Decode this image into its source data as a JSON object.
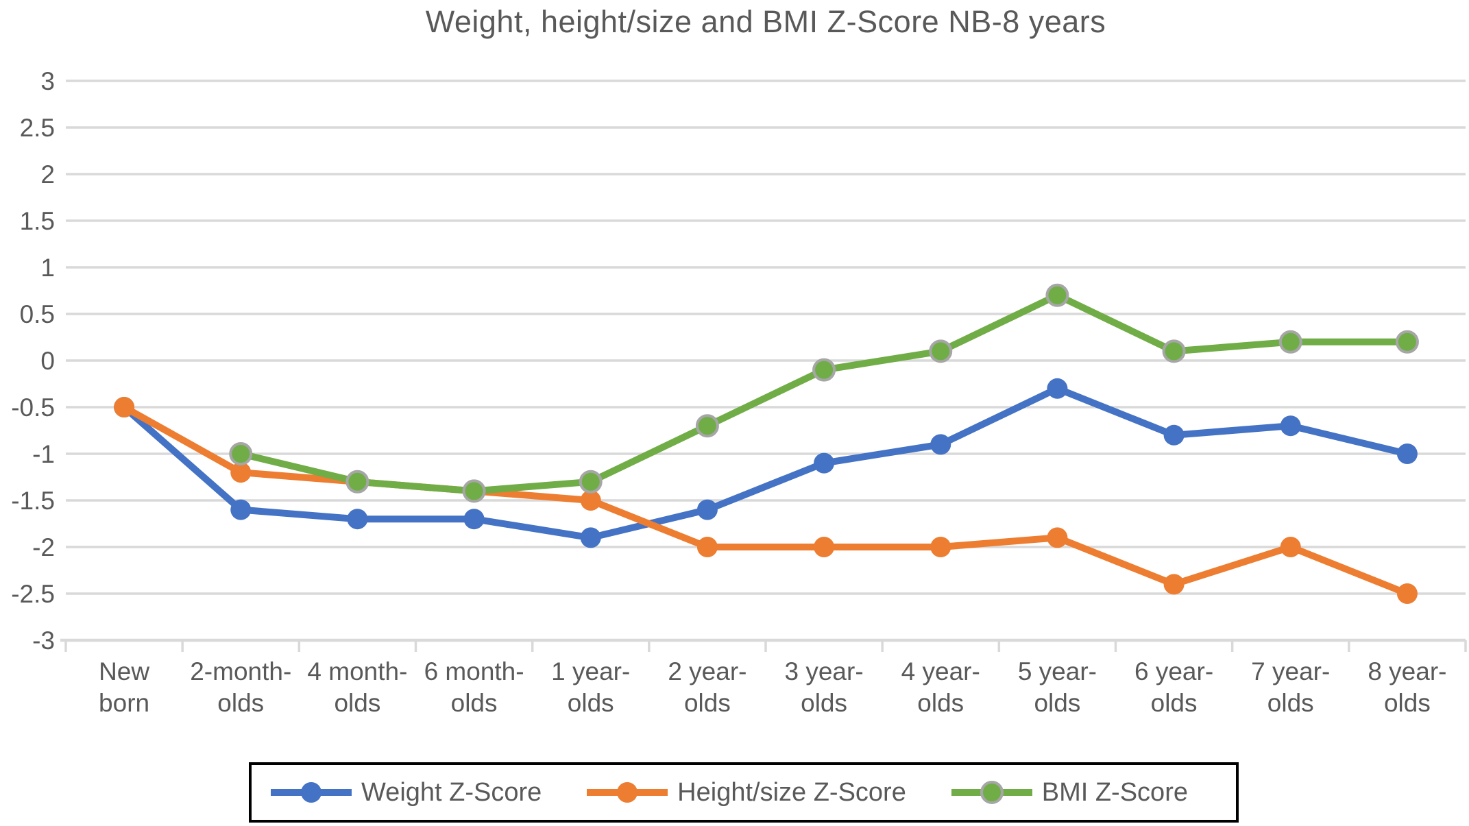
{
  "chart_data": {
    "type": "line",
    "title": "Weight, height/size and BMI Z-Score NB-8 years",
    "categories": [
      "New born",
      "2-month-olds",
      "4 month-olds",
      "6 month-olds",
      "1 year-olds",
      "2 year-olds",
      "3 year-olds",
      "4 year-olds",
      "5 year-olds",
      "6 year-olds",
      "7 year-olds",
      "8 year-olds"
    ],
    "category_label_lines": [
      [
        "New",
        "born"
      ],
      [
        "2-month-",
        "olds"
      ],
      [
        "4 month-",
        "olds"
      ],
      [
        "6 month-",
        "olds"
      ],
      [
        "1 year-",
        "olds"
      ],
      [
        "2 year-",
        "olds"
      ],
      [
        "3 year-",
        "olds"
      ],
      [
        "4 year-",
        "olds"
      ],
      [
        "5 year-",
        "olds"
      ],
      [
        "6 year-",
        "olds"
      ],
      [
        "7 year-",
        "olds"
      ],
      [
        "8 year-",
        "olds"
      ]
    ],
    "y_axis": {
      "min": -3,
      "max": 3,
      "step": 0.5,
      "tick_labels": [
        "3",
        "2.5",
        "2",
        "1.5",
        "1",
        "0.5",
        "0",
        "-0.5",
        "-1",
        "-1.5",
        "-2",
        "-2.5",
        "-3"
      ]
    },
    "grid": true,
    "legend_position": "bottom",
    "series": [
      {
        "name": "Weight Z-Score",
        "color": "#4472C4",
        "marker_border": null,
        "values": [
          -0.5,
          -1.6,
          -1.7,
          -1.7,
          -1.9,
          -1.6,
          -1.1,
          -0.9,
          -0.3,
          -0.8,
          -0.7,
          -1.0
        ]
      },
      {
        "name": "Height/size Z-Score",
        "color": "#ED7D31",
        "marker_border": null,
        "values": [
          -0.5,
          -1.2,
          -1.3,
          -1.4,
          -1.5,
          -2.0,
          -2.0,
          -2.0,
          -1.9,
          -2.4,
          -2.0,
          -2.5
        ]
      },
      {
        "name": "BMI Z-Score",
        "color": "#70AD47",
        "marker_border": "#A6A6A6",
        "values": [
          null,
          -1.0,
          -1.3,
          -1.4,
          -1.3,
          -0.7,
          -0.1,
          0.1,
          0.7,
          0.1,
          0.2,
          0.2
        ]
      }
    ],
    "style": {
      "gridline_color": "#D9D9D9",
      "axis_color": "#D9D9D9",
      "text_color": "#595959",
      "background": "#FFFFFF",
      "legend_border_color": "#000000"
    }
  }
}
